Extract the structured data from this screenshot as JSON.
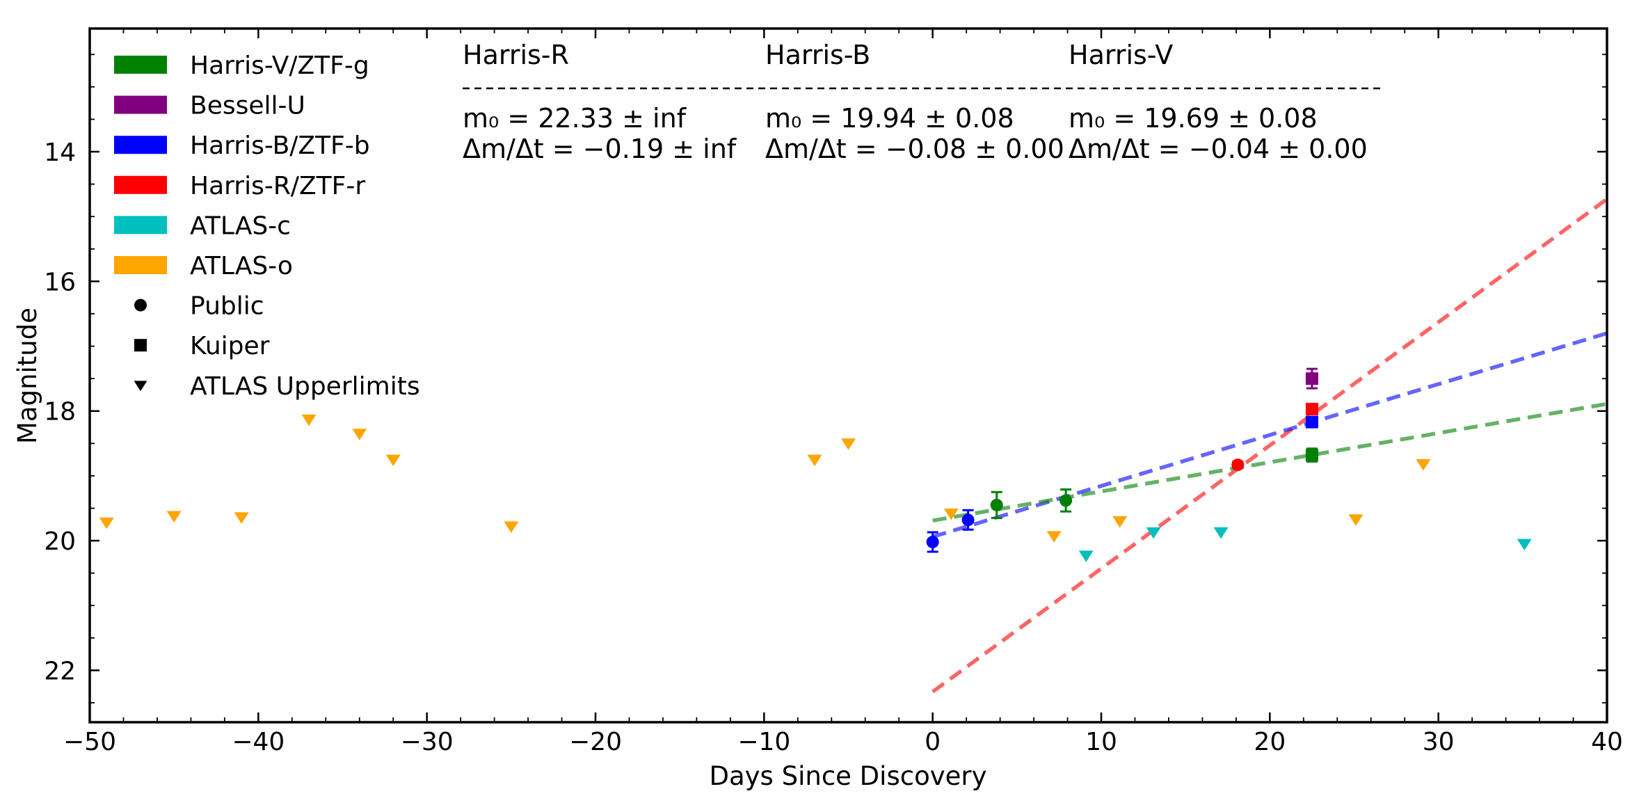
{
  "chart_data": {
    "type": "scatter",
    "xlabel": "Days Since Discovery",
    "ylabel": "Magnitude",
    "xlim": [
      -50,
      40
    ],
    "ylim": [
      22.8,
      12.1
    ],
    "y_inverted": true,
    "grid": false,
    "legend_placement": "top-left",
    "xticks": [
      -50,
      -40,
      -30,
      -20,
      -10,
      0,
      10,
      20,
      30,
      40
    ],
    "xtick_labels": [
      "−50",
      "−40",
      "−30",
      "−20",
      "−10",
      "0",
      "10",
      "20",
      "30",
      "40"
    ],
    "yticks": [
      14,
      16,
      18,
      20,
      22
    ],
    "ytick_labels": [
      "14",
      "16",
      "18",
      "20",
      "22"
    ],
    "colors": {
      "green": "#008000",
      "purple": "#800080",
      "blue": "#0000ff",
      "red": "#ff0000",
      "cyan": "#00bfbf",
      "orange": "#ffa500"
    },
    "legend": {
      "filters": [
        {
          "label": "Harris-V/ZTF-g",
          "color": "#008000"
        },
        {
          "label": "Bessell-U",
          "color": "#800080"
        },
        {
          "label": "Harris-B/ZTF-b",
          "color": "#0000ff"
        },
        {
          "label": "Harris-R/ZTF-r",
          "color": "#ff0000"
        },
        {
          "label": "ATLAS-c",
          "color": "#00bfbf"
        },
        {
          "label": "ATLAS-o",
          "color": "#ffa500"
        }
      ],
      "markers": [
        {
          "label": "Public",
          "marker": "circle"
        },
        {
          "label": "Kuiper",
          "marker": "square"
        },
        {
          "label": "ATLAS Upperlimits",
          "marker": "triangle-down"
        }
      ]
    },
    "fits": [
      {
        "header": "Harris-R",
        "m0": "m₀ = 22.33 ± inf",
        "slope": "Δm/Δt = −0.19 ± inf",
        "m0_value": 22.33,
        "slope_value": -0.19,
        "color": "#ff0000",
        "x_range": [
          0,
          40
        ]
      },
      {
        "header": "Harris-B",
        "m0": "m₀ = 19.94 ± 0.08",
        "slope": "Δm/Δt = −0.08 ± 0.00",
        "m0_value": 19.94,
        "slope_value": -0.0785,
        "color": "#0000ff",
        "x_range": [
          0,
          40
        ]
      },
      {
        "header": "Harris-V",
        "m0": "m₀ = 19.69 ± 0.08",
        "slope": "Δm/Δt = −0.04 ± 0.00",
        "m0_value": 19.69,
        "slope_value": -0.045,
        "color": "#008000",
        "x_range": [
          0,
          40
        ]
      }
    ],
    "fit_separator": "-------------------------------------------------------------------------------",
    "detections": [
      {
        "filter": "Harris-B/ZTF-b",
        "source": "Public",
        "color": "#0000ff",
        "x": 0.0,
        "y": 20.02,
        "err": 0.15
      },
      {
        "filter": "Harris-B/ZTF-b",
        "source": "Public",
        "color": "#0000ff",
        "x": 2.1,
        "y": 19.68,
        "err": 0.15
      },
      {
        "filter": "Harris-V/ZTF-g",
        "source": "Public",
        "color": "#008000",
        "x": 3.8,
        "y": 19.45,
        "err": 0.2
      },
      {
        "filter": "Harris-V/ZTF-g",
        "source": "Public",
        "color": "#008000",
        "x": 7.9,
        "y": 19.38,
        "err": 0.17
      },
      {
        "filter": "Harris-R/ZTF-r",
        "source": "Public",
        "color": "#ff0000",
        "x": 18.1,
        "y": 18.83,
        "err": 0.05
      },
      {
        "filter": "Bessell-U",
        "source": "Kuiper",
        "color": "#800080",
        "x": 22.5,
        "y": 17.5,
        "err": 0.15
      },
      {
        "filter": "Harris-R/ZTF-r",
        "source": "Kuiper",
        "color": "#ff0000",
        "x": 22.5,
        "y": 17.97,
        "err": 0.05
      },
      {
        "filter": "Harris-B/ZTF-b",
        "source": "Kuiper",
        "color": "#0000ff",
        "x": 22.5,
        "y": 18.17,
        "err": 0.05
      },
      {
        "filter": "Harris-V/ZTF-g",
        "source": "Kuiper",
        "color": "#008000",
        "x": 22.5,
        "y": 18.68,
        "err": 0.1
      }
    ],
    "upper_limits": [
      {
        "filter": "ATLAS-o",
        "color": "#ffa500",
        "x": -49.0,
        "y": 19.72
      },
      {
        "filter": "ATLAS-o",
        "color": "#ffa500",
        "x": -45.0,
        "y": 19.62
      },
      {
        "filter": "ATLAS-o",
        "color": "#ffa500",
        "x": -41.0,
        "y": 19.64
      },
      {
        "filter": "ATLAS-o",
        "color": "#ffa500",
        "x": -37.0,
        "y": 18.13
      },
      {
        "filter": "ATLAS-o",
        "color": "#ffa500",
        "x": -34.0,
        "y": 18.35
      },
      {
        "filter": "ATLAS-o",
        "color": "#ffa500",
        "x": -32.0,
        "y": 18.75
      },
      {
        "filter": "ATLAS-o",
        "color": "#ffa500",
        "x": -25.0,
        "y": 19.78
      },
      {
        "filter": "ATLAS-o",
        "color": "#ffa500",
        "x": -7.0,
        "y": 18.75
      },
      {
        "filter": "ATLAS-o",
        "color": "#ffa500",
        "x": -5.0,
        "y": 18.5
      },
      {
        "filter": "ATLAS-o",
        "color": "#ffa500",
        "x": 1.1,
        "y": 19.58
      },
      {
        "filter": "ATLAS-o",
        "color": "#ffa500",
        "x": 7.2,
        "y": 19.93
      },
      {
        "filter": "ATLAS-c",
        "color": "#00bfbf",
        "x": 9.1,
        "y": 20.23
      },
      {
        "filter": "ATLAS-o",
        "color": "#ffa500",
        "x": 11.1,
        "y": 19.7
      },
      {
        "filter": "ATLAS-c",
        "color": "#00bfbf",
        "x": 13.1,
        "y": 19.87
      },
      {
        "filter": "ATLAS-c",
        "color": "#00bfbf",
        "x": 17.1,
        "y": 19.87
      },
      {
        "filter": "ATLAS-o",
        "color": "#ffa500",
        "x": 25.1,
        "y": 19.67
      },
      {
        "filter": "ATLAS-o",
        "color": "#ffa500",
        "x": 29.1,
        "y": 18.82
      },
      {
        "filter": "ATLAS-c",
        "color": "#00bfbf",
        "x": 35.1,
        "y": 20.05
      }
    ]
  }
}
